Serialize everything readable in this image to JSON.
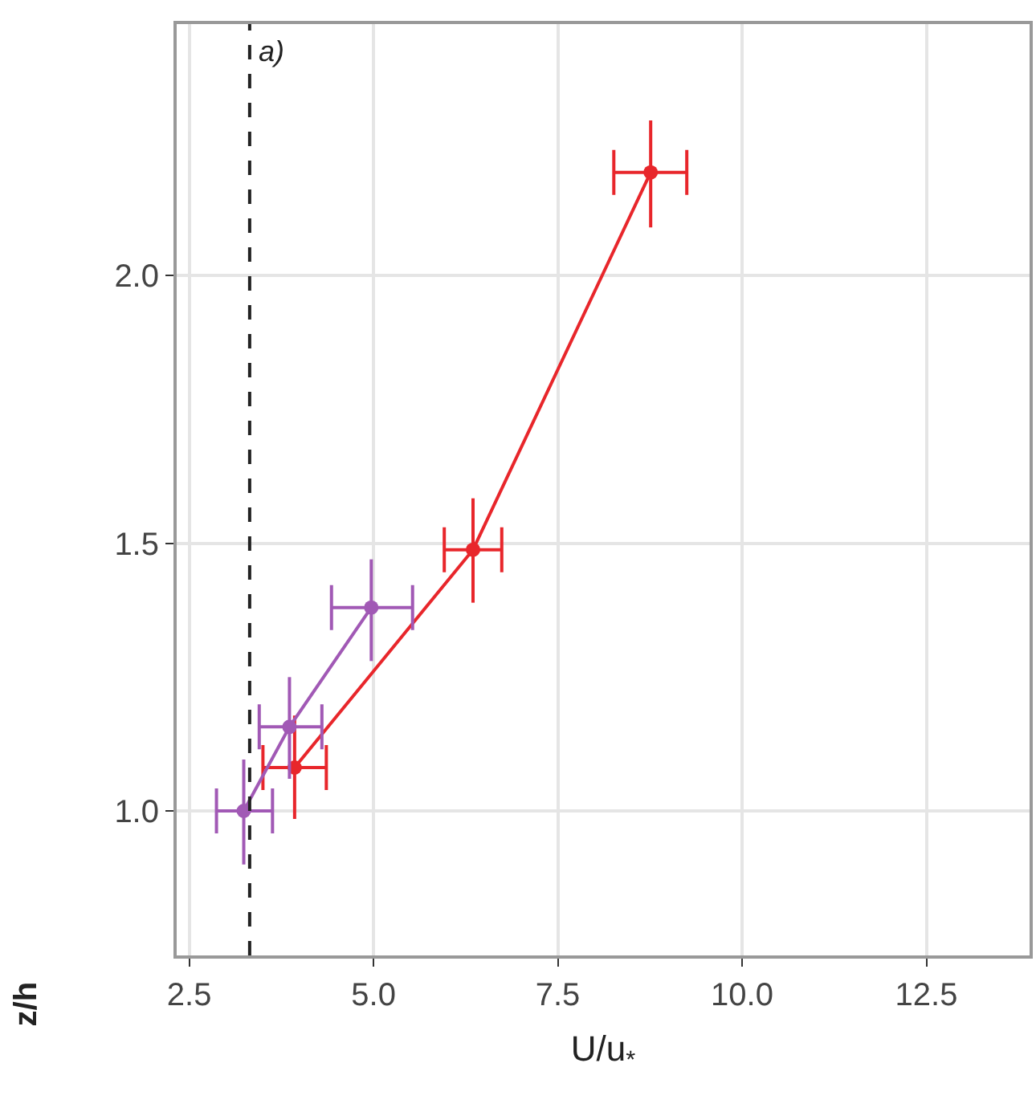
{
  "chart_data": {
    "type": "line",
    "xlabel": "U/u$_{*}$",
    "ylabel": "z/h",
    "annotations": [
      {
        "text": "a)",
        "x": 3.32,
        "y": 2.42
      }
    ],
    "xlim": [
      2.33,
      13.9
    ],
    "xticks": [
      2.5,
      {
        "value": 5,
        "label": "5.0"
      },
      7.5,
      {
        "value": 10,
        "label": "10.0"
      },
      12.5
    ],
    "ylim": [
      0.73,
      2.47
    ],
    "yticks": [
      {
        "value": 1,
        "label": "1.0"
      },
      1.5,
      {
        "value": 2,
        "label": "2.0"
      }
    ],
    "grid": true,
    "marker": "circle",
    "line_style": "solid",
    "ref_lines": [
      {
        "axis": "x",
        "value": 3.32,
        "color": "#222222",
        "line_style": "dashed"
      }
    ],
    "series": [
      {
        "color": "#e8262b",
        "x": [
          3.93,
          6.35,
          8.76
        ],
        "values": [
          1.081,
          1.488,
          2.193
        ],
        "errors": [
          [
            0.985,
            1.178
          ],
          [
            1.389,
            1.584
          ],
          [
            2.09,
            2.29
          ]
        ],
        "xerrors": [
          [
            3.5,
            4.36
          ],
          [
            5.96,
            6.74
          ],
          [
            8.26,
            9.25
          ]
        ]
      },
      {
        "color": "#a159b5",
        "x": [
          3.24,
          3.86,
          4.97
        ],
        "values": [
          1.0,
          1.157,
          1.38
        ],
        "errors": [
          [
            0.9,
            1.096
          ],
          [
            1.06,
            1.25
          ],
          [
            1.28,
            1.47
          ]
        ],
        "xerrors": [
          [
            2.87,
            3.63
          ],
          [
            3.45,
            4.3
          ],
          [
            4.43,
            5.53
          ]
        ]
      }
    ]
  }
}
